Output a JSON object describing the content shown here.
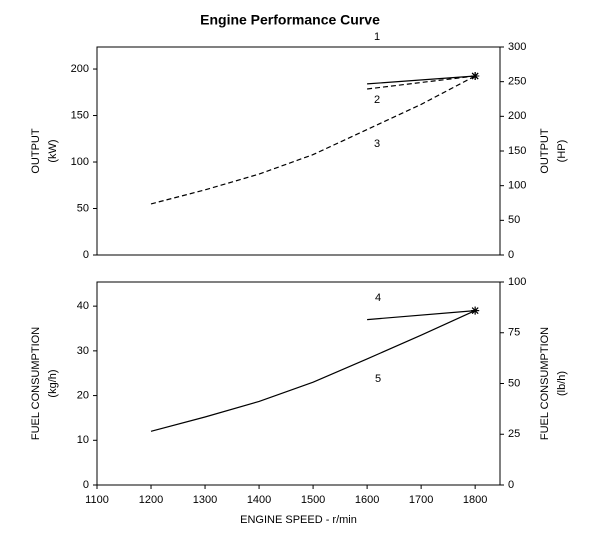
{
  "chart_data": [
    {
      "type": "line",
      "title": "Engine Performance Curve",
      "ylabel": [
        "OUTPUT",
        "(kW)"
      ],
      "y2label": [
        "OUTPUT",
        "(HP)"
      ],
      "x": [
        1200,
        1300,
        1400,
        1500,
        1600,
        1700,
        1800
      ],
      "xlim": [
        1100,
        1846
      ],
      "ylim": [
        0,
        223.7
      ],
      "yticks": [
        0,
        50,
        100,
        150,
        200
      ],
      "y2lim": [
        0,
        300
      ],
      "y2ticks": [
        0,
        50,
        100,
        150,
        200,
        250,
        300
      ],
      "series": [
        {
          "name": "1",
          "color": "#000000",
          "style": "solid",
          "values": [
            null,
            null,
            null,
            null,
            184,
            null,
            192.5
          ]
        },
        {
          "name": "2",
          "color": "#000000",
          "style": "dashed",
          "values": [
            null,
            null,
            null,
            null,
            178.5,
            null,
            192.5
          ]
        },
        {
          "name": "3",
          "color": "#000000",
          "style": "dashed",
          "values": [
            55,
            70,
            87,
            108,
            135,
            162,
            192.5
          ]
        }
      ]
    },
    {
      "type": "line",
      "xlabel": "ENGINE SPEED - r/min",
      "ylabel": [
        "FUEL CONSUMPTION",
        "(kg/h)"
      ],
      "y2label": [
        "FUEL CONSUMPTION",
        "(lb/h)"
      ],
      "x": [
        1200,
        1300,
        1400,
        1500,
        1600,
        1700,
        1800
      ],
      "xlim": [
        1100,
        1846
      ],
      "xticks": [
        1100,
        1200,
        1300,
        1400,
        1500,
        1600,
        1700,
        1800
      ],
      "ylim": [
        0,
        45.4
      ],
      "yticks": [
        0,
        10,
        20,
        30,
        40
      ],
      "y2lim": [
        0,
        100
      ],
      "y2ticks": [
        0,
        25,
        50,
        75,
        100
      ],
      "series": [
        {
          "name": "4",
          "color": "#000000",
          "style": "solid",
          "values": [
            null,
            null,
            null,
            null,
            37,
            null,
            39
          ]
        },
        {
          "name": "5",
          "color": "#000000",
          "style": "solid",
          "values": [
            12,
            15.2,
            18.7,
            23,
            28.2,
            33.5,
            39
          ]
        }
      ]
    }
  ]
}
